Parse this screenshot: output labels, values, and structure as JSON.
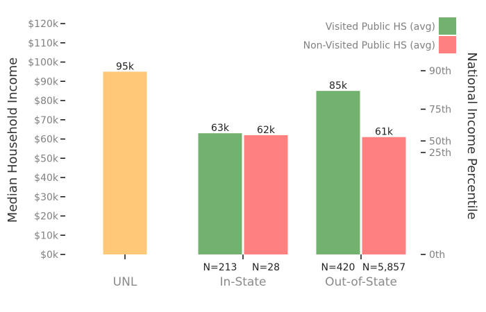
{
  "chart_data": {
    "type": "bar",
    "ylabel": "Median Household Income",
    "y2label": "National Income Percentile",
    "ylim": [
      0,
      120000
    ],
    "y_ticks": [
      {
        "value": 0,
        "label": "$0k"
      },
      {
        "value": 10000,
        "label": "$10k"
      },
      {
        "value": 20000,
        "label": "$20k"
      },
      {
        "value": 30000,
        "label": "$30k"
      },
      {
        "value": 40000,
        "label": "$40k"
      },
      {
        "value": 50000,
        "label": "$50k"
      },
      {
        "value": 60000,
        "label": "$60k"
      },
      {
        "value": 70000,
        "label": "$70k"
      },
      {
        "value": 80000,
        "label": "$80k"
      },
      {
        "value": 90000,
        "label": "$90k"
      },
      {
        "value": 100000,
        "label": "$100k"
      },
      {
        "value": 110000,
        "label": "$110k"
      },
      {
        "value": 120000,
        "label": "$120k"
      }
    ],
    "y2_ticks": [
      {
        "income": 0,
        "label": "0th"
      },
      {
        "income": 53000,
        "label": "25th"
      },
      {
        "income": 59000,
        "label": "50th"
      },
      {
        "income": 75500,
        "label": "75th"
      },
      {
        "income": 95500,
        "label": "90th"
      }
    ],
    "categories": [
      "UNL",
      "In-State",
      "Out-of-State"
    ],
    "series": [
      {
        "key": "unl",
        "color": "#FFC878",
        "values": [
          95000,
          null,
          null
        ],
        "labels": [
          "95k",
          null,
          null
        ],
        "n": [
          null,
          null,
          null
        ]
      },
      {
        "name": "Visited Public HS (avg)",
        "key": "visited",
        "color": "#73B26E",
        "values": [
          null,
          63000,
          85000
        ],
        "labels": [
          null,
          "63k",
          "85k"
        ],
        "n": [
          null,
          "N=213",
          "N=420"
        ]
      },
      {
        "name": "Non-Visited Public HS (avg)",
        "key": "nonvisited",
        "color": "#FF8080",
        "values": [
          null,
          62000,
          61000
        ],
        "labels": [
          null,
          "62k",
          "61k"
        ],
        "n": [
          null,
          "N=28",
          "N=5,857"
        ]
      }
    ],
    "legend": {
      "placement": "top-right",
      "entries": [
        "Visited Public HS (avg)",
        "Non-Visited Public HS (avg)"
      ]
    }
  }
}
